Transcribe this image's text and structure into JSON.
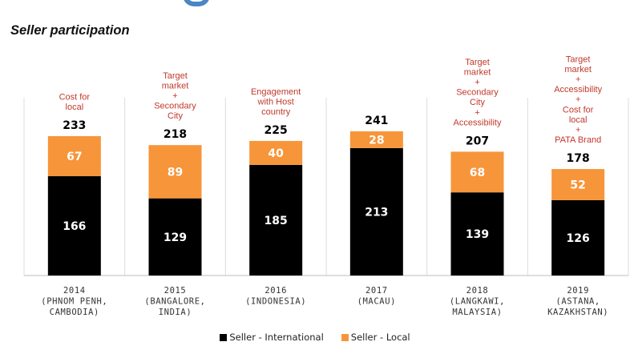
{
  "header": {
    "title": "Seller participation"
  },
  "chart_data": {
    "type": "bar",
    "stacked": true,
    "title": "Seller participation",
    "categories": [
      [
        "2014",
        "(PHNOM PENH,",
        "CAMBODIA)"
      ],
      [
        "2015",
        "(BANGALORE,",
        "INDIA)"
      ],
      [
        "2016",
        "(INDONESIA)"
      ],
      [
        "2017",
        "(MACAU)"
      ],
      [
        "2018",
        "(LANGKAWI,",
        "MALAYSIA)"
      ],
      [
        "2019",
        "(ASTANA,",
        "KAZAKHSTAN)"
      ]
    ],
    "series": [
      {
        "name": "Seller - International",
        "color": "#000000",
        "values": [
          166,
          129,
          185,
          213,
          139,
          126
        ]
      },
      {
        "name": "Seller - Local",
        "color": "#f7953a",
        "values": [
          67,
          89,
          40,
          28,
          68,
          52
        ]
      }
    ],
    "totals": [
      233,
      218,
      225,
      241,
      207,
      178
    ],
    "annotations": [
      [
        "Cost for",
        "local"
      ],
      [
        "Target",
        "market",
        "+",
        "Secondary",
        "City"
      ],
      [
        "Engagement",
        "with Host",
        "country"
      ],
      [],
      [
        "Target",
        "market",
        "+",
        "Secondary",
        "City",
        "+",
        "Accessibility"
      ],
      [
        "Target",
        "market",
        "+",
        "Accessibility",
        "+",
        "Cost for",
        "local",
        "+",
        "PATA Brand"
      ]
    ],
    "annotation_color": "#c0392b",
    "ylim": [
      0,
      241
    ],
    "legend_position": "bottom",
    "grid": false
  }
}
